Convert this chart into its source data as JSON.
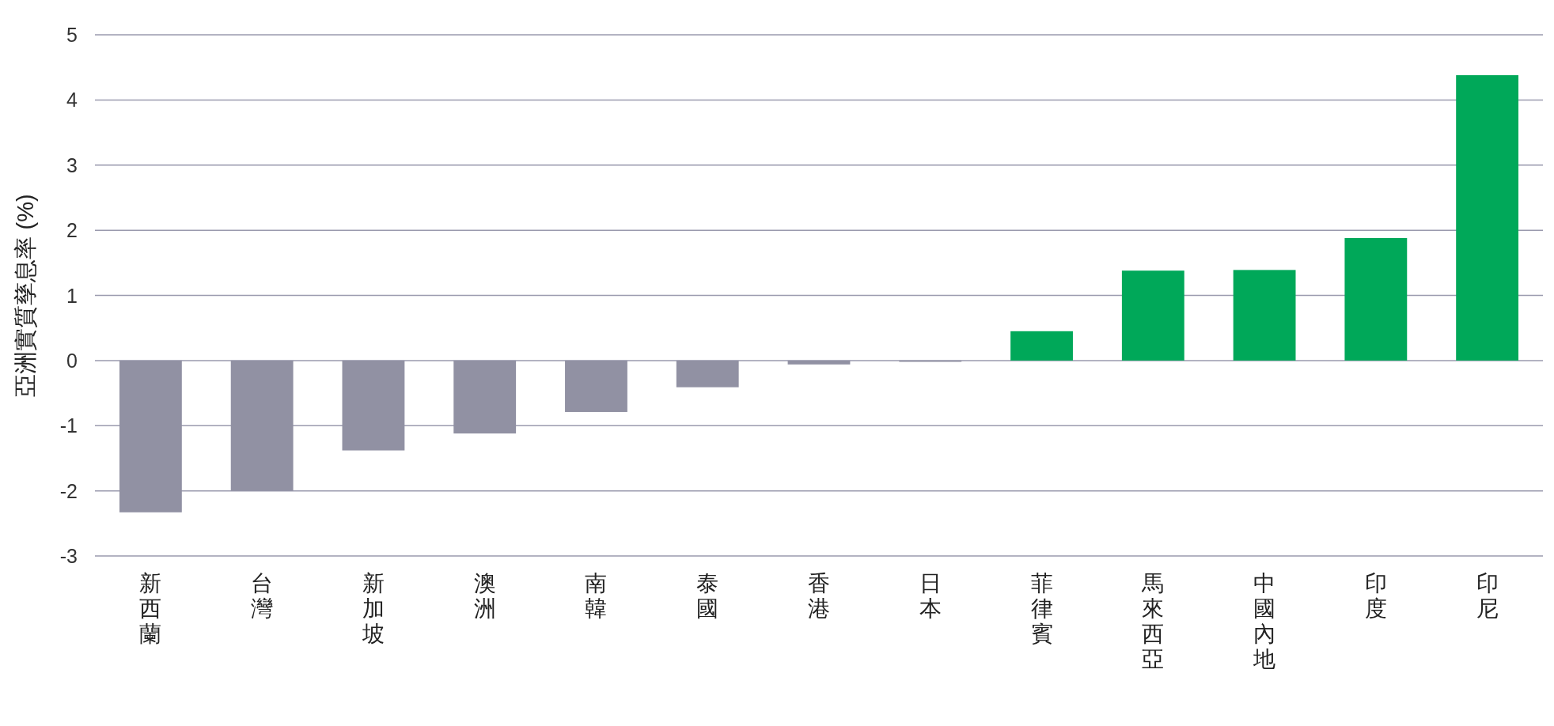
{
  "chart_data": {
    "type": "bar",
    "ylabel": "亞洲實質孳息率 (%)",
    "categories": [
      "新西蘭",
      "台灣",
      "新加坡",
      "澳洲",
      "南韓",
      "泰國",
      "香港",
      "日本",
      "菲律賓",
      "馬來西亞",
      "中國內地",
      "印度",
      "印尼"
    ],
    "values": [
      -2.33,
      -2.0,
      -1.38,
      -1.12,
      -0.79,
      -0.41,
      -0.06,
      -0.02,
      0.45,
      1.38,
      1.39,
      1.88,
      4.38
    ],
    "colors": [
      "#9191a3",
      "#9191a3",
      "#9191a3",
      "#9191a3",
      "#9191a3",
      "#9191a3",
      "#9191a3",
      "#9191a3",
      "#00a859",
      "#00a859",
      "#00a859",
      "#00a859",
      "#00a859"
    ],
    "ylim": [
      -3,
      5
    ],
    "yticks": [
      -3,
      -2,
      -1,
      0,
      1,
      2,
      3,
      4,
      5
    ],
    "grid": "y"
  }
}
